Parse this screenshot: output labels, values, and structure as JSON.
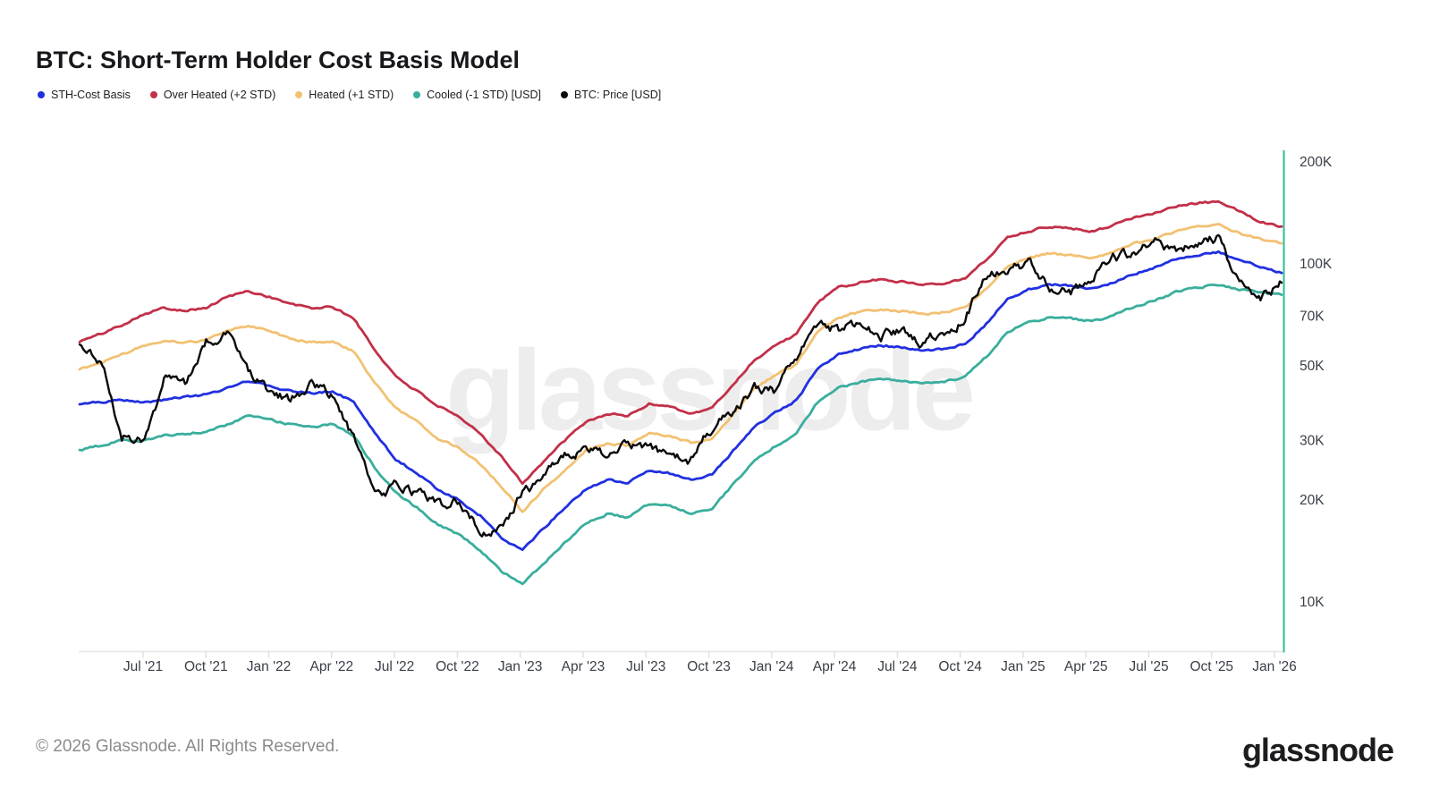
{
  "title": "BTC: Short-Term Holder Cost Basis Model",
  "footer": {
    "copyright": "© 2026 Glassnode. All Rights Reserved.",
    "brand": "glassnode"
  },
  "chart_data": {
    "type": "line",
    "title": "BTC: Short-Term Holder Cost Basis Model",
    "watermark": "glassnode",
    "y_scale": "log",
    "values_unit": "thousand USD",
    "grid": false,
    "legend_position": "top-left",
    "axis_color": "#2dbd96",
    "y_ticks": {
      "labels": [
        "200K",
        "100K",
        "70K",
        "50K",
        "30K",
        "20K",
        "10K"
      ],
      "values": [
        200,
        100,
        70,
        50,
        30,
        20,
        10
      ]
    },
    "x_ticks": [
      "Jul '21",
      "Oct '21",
      "Jan '22",
      "Apr '22",
      "Jul '22",
      "Oct '22",
      "Jan '23",
      "Apr '23",
      "Jul '23",
      "Oct '23",
      "Jan '24",
      "Apr '24",
      "Jul '24",
      "Oct '24",
      "Jan '25",
      "Apr '25",
      "Jul '25",
      "Oct '25",
      "Jan '26"
    ],
    "dates": [
      "2021-04",
      "2021-05",
      "2021-06",
      "2021-07",
      "2021-08",
      "2021-09",
      "2021-10",
      "2021-11",
      "2021-12",
      "2022-01",
      "2022-02",
      "2022-03",
      "2022-04",
      "2022-05",
      "2022-06",
      "2022-07",
      "2022-08",
      "2022-09",
      "2022-10",
      "2022-11",
      "2022-12",
      "2023-01",
      "2023-02",
      "2023-03",
      "2023-04",
      "2023-05",
      "2023-06",
      "2023-07",
      "2023-08",
      "2023-09",
      "2023-10",
      "2023-11",
      "2023-12",
      "2024-01",
      "2024-02",
      "2024-03",
      "2024-04",
      "2024-05",
      "2024-06",
      "2024-07",
      "2024-08",
      "2024-09",
      "2024-10",
      "2024-11",
      "2024-12",
      "2025-01",
      "2025-02",
      "2025-03",
      "2025-04",
      "2025-05",
      "2025-06",
      "2025-07",
      "2025-08",
      "2025-09",
      "2025-10",
      "2025-11",
      "2025-12",
      "2026-01"
    ],
    "series": [
      {
        "key": "sth-cost-basis",
        "name": "STH-Cost Basis",
        "color": "#2130df",
        "values": [
          38.5,
          39,
          39.5,
          39,
          39.5,
          40.5,
          41,
          43,
          45,
          43.5,
          42,
          41.5,
          42,
          39,
          31.5,
          26.5,
          24,
          21.5,
          20,
          18,
          15.5,
          14.2,
          16.5,
          19,
          21.5,
          23,
          22.5,
          24.5,
          24,
          23,
          23.8,
          28,
          33,
          36.5,
          39.5,
          49,
          54,
          56,
          57.5,
          56.5,
          55.5,
          56,
          58,
          66.5,
          79,
          84,
          87,
          86,
          84.5,
          88,
          93,
          97.5,
          103,
          106,
          108.5,
          103,
          98,
          94
        ]
      },
      {
        "key": "over-heated",
        "name": "Over Heated (+2 STD)",
        "color": "#c23049",
        "values": [
          59,
          62,
          66,
          71,
          74,
          73,
          74,
          80,
          83,
          80,
          76,
          74,
          74.5,
          69,
          55.5,
          46.5,
          42,
          38,
          35,
          31.5,
          27,
          22.5,
          26,
          30,
          34,
          36,
          35.5,
          38.5,
          38,
          36,
          37.5,
          44,
          52,
          57.5,
          62,
          77,
          85,
          88,
          90,
          88.5,
          87,
          88,
          90.5,
          103,
          120,
          125,
          129,
          127.5,
          125,
          130,
          137,
          142,
          148,
          151,
          153,
          143,
          133,
          129
        ]
      },
      {
        "key": "heated",
        "name": "Heated (+1 STD)",
        "color": "#f2c173",
        "values": [
          49,
          51,
          54,
          57,
          59.5,
          58.5,
          59.5,
          63.5,
          65.5,
          63,
          60,
          58.5,
          59,
          55,
          44.5,
          37.5,
          34,
          30.5,
          28.5,
          25.5,
          22,
          18.5,
          21.5,
          24.5,
          28,
          29.5,
          29,
          31.5,
          31,
          29.5,
          30.5,
          36,
          42.5,
          47,
          50.5,
          63,
          69.5,
          72,
          73.5,
          72.5,
          71,
          72,
          74,
          84.5,
          99,
          104,
          107.5,
          106,
          104,
          108.5,
          114.5,
          119,
          125,
          128.5,
          130.5,
          123,
          118.5,
          115
        ]
      },
      {
        "key": "cooled",
        "name": "Cooled (-1 STD) [USD]",
        "color": "#3aae9d",
        "values": [
          28,
          29,
          30,
          30,
          31,
          31.5,
          32,
          33.5,
          35.5,
          34.5,
          33.5,
          33,
          33.5,
          31,
          25,
          21,
          19,
          17,
          15.8,
          14.2,
          12.3,
          11.3,
          13,
          15,
          17,
          18.2,
          17.8,
          19.5,
          19.2,
          18.3,
          19,
          22.3,
          26.3,
          29,
          31.5,
          39,
          43,
          44.7,
          46,
          45.2,
          44.4,
          44.8,
          46.4,
          53,
          63,
          67,
          69.5,
          68.8,
          67.5,
          70.5,
          74.5,
          78,
          82.5,
          85,
          87,
          84,
          82,
          81
        ]
      },
      {
        "key": "btc-price",
        "name": "BTC: Price [USD]",
        "color": "#0a0a0a",
        "values": [
          57,
          52,
          31,
          30,
          45,
          44,
          60,
          63,
          48,
          42,
          39.5,
          44,
          40.5,
          30,
          20.5,
          22,
          21,
          19.3,
          19.8,
          16.3,
          16.5,
          20.8,
          23.2,
          27,
          28.5,
          26.8,
          29.5,
          29,
          26,
          26.3,
          33,
          37,
          42.5,
          42,
          53,
          68,
          63.5,
          67,
          61.5,
          64.5,
          59,
          63,
          69.5,
          93,
          95.5,
          100,
          86,
          83,
          92,
          104,
          105.5,
          115,
          110,
          113,
          120,
          86,
          80,
          88
        ]
      }
    ]
  }
}
